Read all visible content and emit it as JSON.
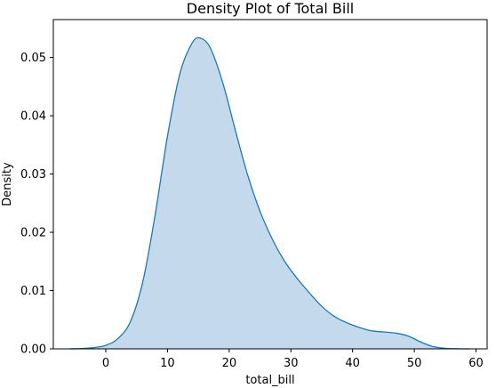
{
  "chart_data": {
    "type": "area",
    "title": "Density Plot of Total Bill",
    "xlabel": "total_bill",
    "ylabel": "Density",
    "xlim": [
      -8.5,
      61.8
    ],
    "ylim": [
      0,
      0.0565
    ],
    "xticks": [
      0,
      10,
      20,
      30,
      40,
      50,
      60
    ],
    "xtick_labels": [
      "0",
      "10",
      "20",
      "30",
      "40",
      "50",
      "60"
    ],
    "yticks": [
      0.0,
      0.01,
      0.02,
      0.03,
      0.04,
      0.05
    ],
    "ytick_labels": [
      "0.00",
      "0.01",
      "0.02",
      "0.03",
      "0.04",
      "0.05"
    ],
    "grid": false,
    "legend": "none",
    "series": [
      {
        "color": "#1f77b4",
        "fill_color": "#c5d9ec",
        "x": [
          -5.8,
          -4,
          -2,
          0,
          2,
          4,
          6,
          8,
          10,
          12,
          14,
          15.4,
          17,
          19,
          21,
          23,
          25,
          27,
          29,
          31,
          33,
          35,
          37,
          39,
          41,
          43,
          45,
          47,
          49,
          51,
          53,
          55,
          57,
          59
        ],
        "y": [
          0.0,
          5e-05,
          0.0002,
          0.0006,
          0.0018,
          0.0047,
          0.0115,
          0.023,
          0.0365,
          0.0472,
          0.0525,
          0.0533,
          0.0515,
          0.0455,
          0.0375,
          0.0298,
          0.0236,
          0.0188,
          0.015,
          0.0121,
          0.0096,
          0.0073,
          0.0056,
          0.0045,
          0.0037,
          0.0031,
          0.0029,
          0.0027,
          0.0022,
          0.0012,
          0.0004,
          0.0001,
          2e-05,
          0.0
        ]
      }
    ]
  }
}
